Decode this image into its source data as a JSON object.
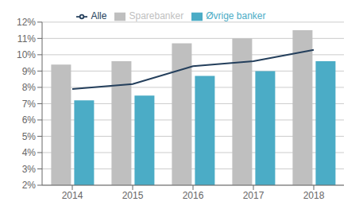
{
  "chart_data": {
    "type": "bar",
    "categories": [
      "2014",
      "2015",
      "2016",
      "2017",
      "2018"
    ],
    "series": [
      {
        "name": "Sparebanker",
        "color": "#bfbfbf",
        "values": [
          9.4,
          9.6,
          10.7,
          11.0,
          11.5
        ]
      },
      {
        "name": "Øvrige banker",
        "color": "#4bacc6",
        "values": [
          7.2,
          7.5,
          8.7,
          9.0,
          9.6
        ]
      },
      {
        "name": "Alle",
        "type": "line",
        "color": "#243f5c",
        "values": [
          7.9,
          8.2,
          9.3,
          9.6,
          10.3
        ]
      }
    ],
    "ylim": [
      2,
      12
    ],
    "yticks": [
      {
        "value": 2,
        "label": "2%"
      },
      {
        "value": 3,
        "label": "3%"
      },
      {
        "value": 4,
        "label": "4%"
      },
      {
        "value": 5,
        "label": "5%"
      },
      {
        "value": 6,
        "label": "6%"
      },
      {
        "value": 7,
        "label": "7%"
      },
      {
        "value": 8,
        "label": "8%"
      },
      {
        "value": 9,
        "label": "9%"
      },
      {
        "value": 10,
        "label": "10%"
      },
      {
        "value": 11,
        "label": "11%"
      },
      {
        "value": 12,
        "label": "12%"
      }
    ],
    "grid": true,
    "legend": "top"
  }
}
